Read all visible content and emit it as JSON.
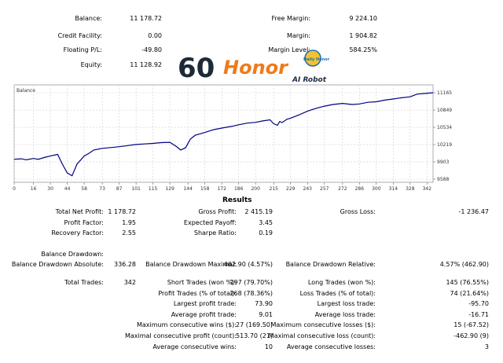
{
  "summary": {
    "balance_label": "Balance:",
    "balance_value": "11 178.72",
    "credit_label": "Credit Facility:",
    "credit_value": "0.00",
    "floating_label": "Floating P/L:",
    "floating_value": "-49.80",
    "equity_label": "Equity:",
    "equity_value": "11 128.92",
    "free_margin_label": "Free Margin:",
    "free_margin_value": "9 224.10",
    "margin_label": "Margin:",
    "margin_value": "1 904.82",
    "margin_level_label": "Margin Level:",
    "margin_level_value": "584.25%"
  },
  "logo": {
    "number": "60",
    "word": "Honor",
    "badge": "Daily Honor",
    "sub": "AI Robot"
  },
  "chart_data": {
    "type": "line",
    "title": "Balance",
    "x_ticks": [
      "0",
      "16",
      "30",
      "44",
      "58",
      "73",
      "87",
      "101",
      "115",
      "129",
      "144",
      "158",
      "172",
      "186",
      "200",
      "215",
      "229",
      "243",
      "257",
      "272",
      "286",
      "300",
      "314",
      "328",
      "342"
    ],
    "y_ticks": [
      "11165",
      "10849",
      "10534",
      "10219",
      "9903",
      "9588"
    ],
    "ylim": [
      9588,
      11165
    ],
    "xlim": [
      0,
      347
    ],
    "line_color": "#000080",
    "series": [
      {
        "x": [
          0,
          6,
          10,
          16,
          20,
          26,
          30,
          36,
          40,
          44,
          48,
          52,
          58,
          62,
          66,
          73,
          80,
          87,
          94,
          101,
          108,
          115,
          122,
          129,
          134,
          138,
          142,
          146,
          150,
          158,
          165,
          172,
          180,
          186,
          193,
          200,
          206,
          212,
          215,
          218,
          220,
          222,
          226,
          229,
          236,
          243,
          250,
          257,
          264,
          272,
          280,
          286,
          293,
          300,
          307,
          314,
          320,
          328,
          334,
          340,
          347
        ],
        "y": [
          9950,
          9960,
          9940,
          9965,
          9950,
          9990,
          10010,
          10040,
          9860,
          9700,
          9650,
          9860,
          10010,
          10060,
          10120,
          10150,
          10165,
          10180,
          10200,
          10220,
          10230,
          10240,
          10255,
          10260,
          10190,
          10120,
          10160,
          10320,
          10390,
          10440,
          10490,
          10520,
          10550,
          10580,
          10610,
          10625,
          10650,
          10670,
          10600,
          10570,
          10640,
          10620,
          10680,
          10700,
          10760,
          10830,
          10880,
          10920,
          10950,
          10970,
          10950,
          10960,
          10990,
          11000,
          11030,
          11050,
          11070,
          11090,
          11140,
          11150,
          11165
        ]
      }
    ]
  },
  "results": {
    "title": "Results",
    "net_profit_label": "Total Net Profit:",
    "net_profit_value": "1 178.72",
    "gross_profit_label": "Gross Profit:",
    "gross_profit_value": "2 415.19",
    "gross_loss_label": "Gross Loss:",
    "gross_loss_value": "-1 236.47",
    "profit_factor_label": "Profit Factor:",
    "profit_factor_value": "1.95",
    "expected_payoff_label": "Expected Payoff:",
    "expected_payoff_value": "3.45",
    "recovery_factor_label": "Recovery Factor:",
    "recovery_factor_value": "2.55",
    "sharpe_label": "Sharpe Ratio:",
    "sharpe_value": "0.19",
    "bal_dd_label": "Balance Drawdown:",
    "bal_dd_abs_label": "Balance Drawdown Absolute:",
    "bal_dd_abs_value": "336.28",
    "bal_dd_max_label": "Balance Drawdown Maximal:",
    "bal_dd_max_value": "462.90 (4.57%)",
    "bal_dd_rel_label": "Balance Drawdown Relative:",
    "bal_dd_rel_value": "4.57% (462.90)",
    "total_trades_label": "Total Trades:",
    "total_trades_value": "342",
    "short_label": "Short Trades (won %):",
    "short_value": "197 (79.70%)",
    "long_label": "Long Trades (won %):",
    "long_value": "145 (76.55%)",
    "profit_trades_label": "Profit Trades (% of total):",
    "profit_trades_value": "268 (78.36%)",
    "loss_trades_label": "Loss Trades (% of total):",
    "loss_trades_value": "74 (21.64%)",
    "largest_profit_label": "Largest profit trade:",
    "largest_profit_value": "73.90",
    "largest_loss_label": "Largest loss trade:",
    "largest_loss_value": "-95.70",
    "avg_profit_label": "Average profit trade:",
    "avg_profit_value": "9.01",
    "avg_loss_label": "Average loss trade:",
    "avg_loss_value": "-16.71",
    "max_cons_wins_label": "Maximum consecutive wins ($):",
    "max_cons_wins_value": "27 (169.50)",
    "max_cons_losses_label": "Maximum consecutive losses ($):",
    "max_cons_losses_value": "15 (-67.52)",
    "max_cons_profit_label": "Maximal consecutive profit (count):",
    "max_cons_profit_value": "513.70 (21)",
    "max_cons_loss_label": "Maximal consecutive loss (count):",
    "max_cons_loss_value": "-462.90 (9)",
    "avg_cons_wins_label": "Average consecutive wins:",
    "avg_cons_wins_value": "10",
    "avg_cons_losses_label": "Average consecutive losses:",
    "avg_cons_losses_value": "3"
  }
}
